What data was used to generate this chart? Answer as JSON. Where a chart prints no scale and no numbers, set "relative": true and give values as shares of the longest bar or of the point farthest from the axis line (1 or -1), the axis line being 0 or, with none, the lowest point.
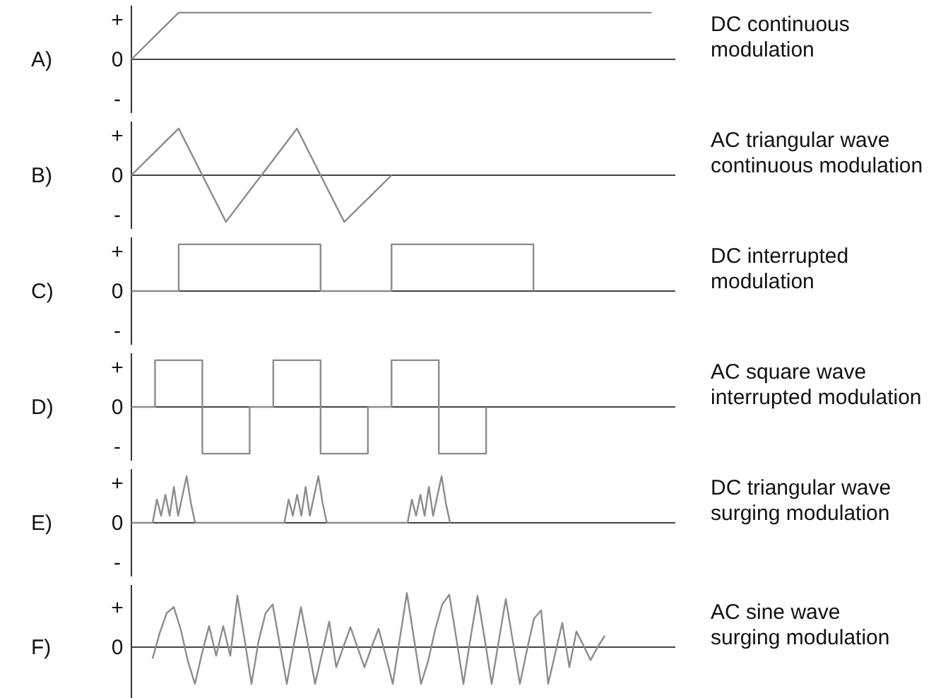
{
  "chart_data": [
    {
      "type": "line",
      "relative": true,
      "title": "A)",
      "tick_labels": false,
      "annotations": [
        "DC continuous\nmodulation",
        "+",
        "0",
        "-"
      ],
      "categories": [
        null,
        null,
        null,
        null,
        null,
        null,
        null,
        null,
        null,
        null,
        null,
        null,
        null,
        null,
        null,
        null,
        null,
        null,
        null,
        null,
        null,
        null,
        null,
        null
      ],
      "series": [
        {
          "color": "#8c8c8c",
          "values": [
            0,
            0.5,
            1,
            1,
            1,
            1,
            1,
            1,
            1,
            1,
            1,
            1,
            1,
            1,
            1,
            1,
            1,
            1,
            1,
            1,
            1,
            1,
            1,
            null
          ]
        }
      ]
    },
    {
      "type": "line",
      "relative": true,
      "title": "B)",
      "tick_labels": false,
      "annotations": [
        "AC triangular wave\ncontinuous modulation",
        "+",
        "0",
        "-"
      ],
      "categories": [
        null,
        null,
        null,
        null,
        null,
        null,
        null,
        null,
        null,
        null,
        null,
        null,
        null,
        null,
        null,
        null,
        null,
        null,
        null,
        null,
        null,
        null,
        null,
        null
      ],
      "series": [
        {
          "color": "#8c8c8c",
          "values": [
            0,
            0.5,
            1,
            0,
            -1,
            -0.33,
            0.33,
            1,
            0,
            -1,
            -0.5,
            0,
            null,
            null,
            null,
            null,
            null,
            null,
            null,
            null,
            null,
            null,
            null,
            null
          ]
        }
      ]
    },
    {
      "type": "step",
      "relative": true,
      "title": "C)",
      "tick_labels": false,
      "annotations": [
        "DC interrupted\nmodulation",
        "+",
        "0",
        "-"
      ],
      "categories": [
        null,
        null,
        null,
        null,
        null,
        null,
        null,
        null,
        null,
        null,
        null,
        null,
        null,
        null,
        null,
        null,
        null,
        null,
        null,
        null,
        null,
        null,
        null,
        null
      ],
      "series": [
        {
          "color": "#8c8c8c",
          "values": [
            0,
            0,
            1,
            1,
            1,
            1,
            1,
            1,
            0,
            0,
            0,
            1,
            1,
            1,
            1,
            1,
            1,
            0,
            null,
            null,
            null,
            null,
            null,
            null
          ]
        }
      ]
    },
    {
      "type": "step",
      "relative": true,
      "title": "D)",
      "tick_labels": false,
      "annotations": [
        "AC square wave\ninterrupted modulation",
        "+",
        "0",
        "-"
      ],
      "categories": [
        null,
        null,
        null,
        null,
        null,
        null,
        null,
        null,
        null,
        null,
        null,
        null,
        null,
        null,
        null,
        null,
        null,
        null,
        null,
        null,
        null,
        null,
        null,
        null
      ],
      "series": [
        {
          "color": "#8c8c8c",
          "values": [
            0,
            1,
            1,
            -1,
            -1,
            0,
            1,
            1,
            -1,
            -1,
            0,
            1,
            1,
            -1,
            -1,
            0,
            null,
            null,
            null,
            null,
            null,
            null,
            null,
            null
          ]
        }
      ]
    },
    {
      "type": "line",
      "relative": true,
      "title": "E)",
      "tick_labels": false,
      "annotations": [
        "DC triangular wave\nsurging modulation",
        "+",
        "0",
        "-"
      ],
      "categories": [
        null,
        null,
        null,
        null,
        null,
        null,
        null,
        null,
        null,
        null,
        null,
        null,
        null,
        null,
        null,
        null,
        null,
        null,
        null,
        null,
        null,
        null,
        null,
        null,
        null,
        null,
        null,
        null,
        null,
        null,
        null,
        null,
        null,
        null,
        null,
        null,
        null,
        null,
        null,
        null,
        null,
        null,
        null,
        null,
        null,
        null,
        null,
        null,
        null,
        null,
        null,
        null,
        null,
        null,
        null,
        null,
        null,
        null,
        null,
        null,
        null,
        null,
        null,
        null,
        null,
        null,
        null,
        null,
        null,
        null,
        null,
        null,
        null,
        null,
        null,
        null,
        null,
        null,
        null,
        null,
        null,
        null,
        null,
        null,
        null,
        null,
        null,
        null,
        null,
        null,
        null,
        null,
        null,
        null,
        null,
        null,
        null,
        null,
        null,
        null,
        null,
        null,
        null,
        null,
        null,
        null,
        null,
        null,
        null,
        null,
        null,
        null,
        null,
        null,
        null,
        null,
        null,
        null,
        null,
        null,
        null,
        null,
        null,
        null,
        null,
        null,
        null,
        null,
        null
      ],
      "series": [
        {
          "color": "#8c8c8c",
          "values": [
            0,
            0,
            0,
            0,
            0,
            0,
            0.5,
            0.15,
            0.6,
            0.15,
            0.77,
            0.15,
            0.58,
            1,
            0.42,
            0,
            0,
            0,
            0,
            0,
            0,
            0,
            0,
            0,
            0,
            0,
            0,
            0,
            0,
            0,
            0,
            0,
            0,
            0,
            0,
            0,
            0,
            0.5,
            0.15,
            0.6,
            0.15,
            0.77,
            0.15,
            0.58,
            1,
            0.42,
            0,
            0,
            0,
            0,
            0,
            0,
            0,
            0,
            0,
            0,
            0,
            0,
            0,
            0,
            0,
            0,
            0,
            0,
            0,
            0,
            0.5,
            0.15,
            0.6,
            0.15,
            0.77,
            0.15,
            0.58,
            1,
            0.42,
            0,
            null,
            null,
            null,
            null,
            null,
            null,
            null,
            null,
            null,
            null,
            null,
            null,
            null,
            null,
            null,
            null,
            null,
            null,
            null,
            null,
            null,
            null,
            null,
            null,
            null,
            null,
            null,
            null,
            null,
            null,
            null,
            null,
            null,
            null,
            null,
            null,
            null,
            null,
            null,
            null,
            null,
            null,
            null,
            null,
            null,
            null,
            null,
            null,
            null,
            null,
            null,
            null,
            null
          ]
        }
      ]
    },
    {
      "type": "line",
      "relative": true,
      "title": "F)",
      "tick_labels": false,
      "annotations": [
        "AC sine wave\nsurging modulation",
        "+",
        "0"
      ],
      "categories": [
        null,
        null,
        null,
        null,
        null,
        null,
        null,
        null,
        null,
        null,
        null,
        null,
        null,
        null,
        null,
        null,
        null,
        null,
        null,
        null,
        null,
        null,
        null,
        null,
        null,
        null,
        null,
        null,
        null,
        null,
        null,
        null,
        null,
        null,
        null,
        null,
        null,
        null,
        null,
        null,
        null,
        null,
        null,
        null,
        null,
        null,
        null,
        null,
        null,
        null,
        null,
        null,
        null,
        null,
        null,
        null,
        null,
        null,
        null,
        null,
        null,
        null,
        null,
        null,
        null,
        null,
        null,
        null,
        null,
        null,
        null,
        null,
        null,
        null,
        null,
        null,
        null,
        null
      ],
      "series": [
        {
          "color": "#8c8c8c",
          "values": [
            null,
            null,
            null,
            -0.21,
            0.26,
            0.63,
            0.74,
            0.32,
            -0.26,
            -0.68,
            -0.11,
            0.39,
            -0.16,
            0.39,
            -0.16,
            0.95,
            0.16,
            -0.68,
            0.11,
            0.63,
            0.79,
            0.05,
            -0.68,
            0.05,
            0.74,
            0.05,
            -0.68,
            -0.11,
            0.47,
            -0.37,
            0,
            0.37,
            0,
            -0.37,
            0,
            0.34,
            -0.16,
            -0.68,
            0.16,
            1,
            0.16,
            -0.68,
            -0.26,
            0.32,
            0.79,
            0.97,
            0.16,
            -0.68,
            0.16,
            0.95,
            0.16,
            -0.68,
            0.11,
            0.89,
            0.11,
            -0.68,
            -0.05,
            0.53,
            0.68,
            -0.68,
            -0.11,
            0.45,
            -0.37,
            0.29,
            0.03,
            -0.24,
            0,
            0.21,
            null,
            null,
            null,
            null,
            null,
            null,
            null,
            null,
            null,
            null
          ]
        }
      ]
    }
  ]
}
